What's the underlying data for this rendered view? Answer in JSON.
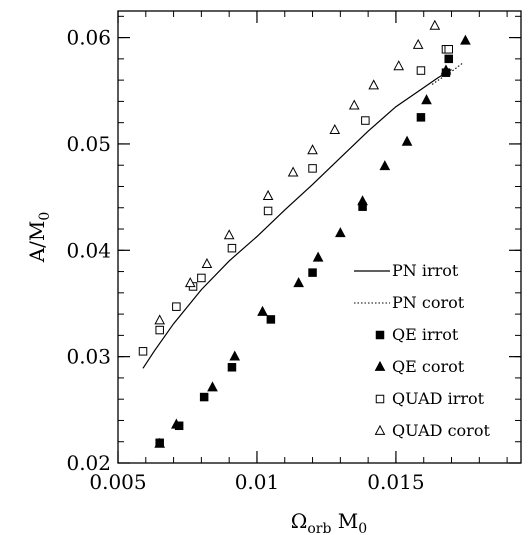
{
  "chart_data": {
    "type": "scatter",
    "xlabel": {
      "main": "Ω",
      "sub": "orb",
      "rest": " M",
      "sub2": "0"
    },
    "ylabel": {
      "main": "A/M",
      "sub": "0"
    },
    "xlim": [
      0.005,
      0.0195
    ],
    "ylim": [
      0.02,
      0.0625
    ],
    "x_ticks": [
      0.005,
      0.01,
      0.015
    ],
    "x_tick_labels": [
      "0.005",
      "0.01",
      "0.015"
    ],
    "y_ticks": [
      0.02,
      0.03,
      0.04,
      0.05,
      0.06
    ],
    "y_tick_labels": [
      "0.02",
      "0.03",
      "0.04",
      "0.05",
      "0.06"
    ],
    "grid": false,
    "legend_position": "bottom-right",
    "series": [
      {
        "name": "PN irrot",
        "style": "solid-line",
        "points": [
          [
            0.0059,
            0.0289
          ],
          [
            0.0063,
            0.0305
          ],
          [
            0.007,
            0.0331
          ],
          [
            0.008,
            0.0363
          ],
          [
            0.009,
            0.039
          ],
          [
            0.01,
            0.0413
          ],
          [
            0.011,
            0.0438
          ],
          [
            0.012,
            0.0462
          ],
          [
            0.013,
            0.0487
          ],
          [
            0.014,
            0.0512
          ],
          [
            0.015,
            0.0535
          ],
          [
            0.016,
            0.0553
          ],
          [
            0.0165,
            0.0562
          ],
          [
            0.017,
            0.057
          ]
        ]
      },
      {
        "name": "PN corot",
        "style": "dotted-line",
        "points": [
          [
            0.0163,
            0.0556
          ],
          [
            0.0167,
            0.0563
          ],
          [
            0.0171,
            0.057
          ],
          [
            0.0174,
            0.0576
          ]
        ]
      },
      {
        "name": "QE irrot",
        "style": "filled-square",
        "points": [
          [
            0.0065,
            0.0219
          ],
          [
            0.0072,
            0.0235
          ],
          [
            0.0081,
            0.0262
          ],
          [
            0.0091,
            0.029
          ],
          [
            0.0105,
            0.0335
          ],
          [
            0.012,
            0.0379
          ],
          [
            0.0138,
            0.0441
          ],
          [
            0.0159,
            0.0525
          ],
          [
            0.0168,
            0.0567
          ],
          [
            0.0169,
            0.058
          ]
        ]
      },
      {
        "name": "QE corot",
        "style": "filled-triangle",
        "points": [
          [
            0.0065,
            0.0218
          ],
          [
            0.0071,
            0.0236
          ],
          [
            0.0084,
            0.0271
          ],
          [
            0.0092,
            0.03
          ],
          [
            0.0102,
            0.0342
          ],
          [
            0.0115,
            0.0369
          ],
          [
            0.0122,
            0.0393
          ],
          [
            0.013,
            0.0416
          ],
          [
            0.0138,
            0.0446
          ],
          [
            0.0146,
            0.0479
          ],
          [
            0.0154,
            0.0502
          ],
          [
            0.0161,
            0.0541
          ],
          [
            0.0168,
            0.0569
          ],
          [
            0.0175,
            0.0597
          ]
        ]
      },
      {
        "name": "QUAD irrot",
        "style": "open-square",
        "points": [
          [
            0.0059,
            0.0305
          ],
          [
            0.0065,
            0.0325
          ],
          [
            0.0071,
            0.0347
          ],
          [
            0.0077,
            0.0366
          ],
          [
            0.008,
            0.0374
          ],
          [
            0.0091,
            0.0402
          ],
          [
            0.0104,
            0.0437
          ],
          [
            0.012,
            0.0477
          ],
          [
            0.0139,
            0.0522
          ],
          [
            0.0159,
            0.0569
          ],
          [
            0.0168,
            0.0589
          ],
          [
            0.0169,
            0.0589
          ]
        ]
      },
      {
        "name": "QUAD corot",
        "style": "open-triangle",
        "points": [
          [
            0.0065,
            0.0334
          ],
          [
            0.0076,
            0.0369
          ],
          [
            0.0082,
            0.0387
          ],
          [
            0.009,
            0.0414
          ],
          [
            0.0104,
            0.0451
          ],
          [
            0.0113,
            0.0473
          ],
          [
            0.012,
            0.0494
          ],
          [
            0.0128,
            0.0513
          ],
          [
            0.0135,
            0.0536
          ],
          [
            0.0142,
            0.0555
          ],
          [
            0.0151,
            0.0573
          ],
          [
            0.0158,
            0.0593
          ],
          [
            0.0164,
            0.0611
          ]
        ]
      }
    ]
  }
}
